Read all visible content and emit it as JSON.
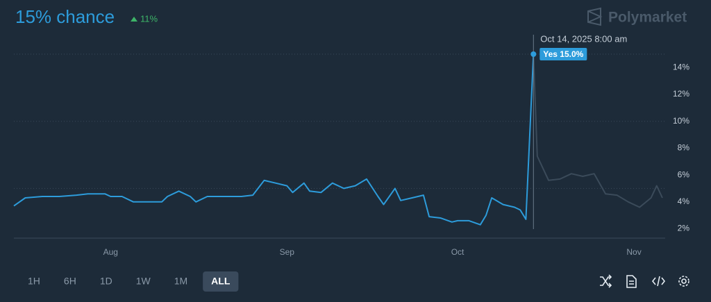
{
  "chart_data": {
    "type": "line",
    "headline": "15% chance",
    "change": "11%",
    "brand": "Polymarket",
    "tooltip": {
      "date": "Oct 14, 2025 8:00 am",
      "label": "Yes 15.0%"
    },
    "hover_x": "2025-10-14T08:00",
    "series": [
      {
        "name": "Yes",
        "color": "#2d9cdb",
        "x": [
          "2025-07-15",
          "2025-07-17",
          "2025-07-20",
          "2025-07-23",
          "2025-07-26",
          "2025-07-28",
          "2025-07-31",
          "2025-08-01",
          "2025-08-03",
          "2025-08-05",
          "2025-08-08",
          "2025-08-10",
          "2025-08-11",
          "2025-08-13",
          "2025-08-15",
          "2025-08-16",
          "2025-08-18",
          "2025-08-20",
          "2025-08-22",
          "2025-08-24",
          "2025-08-26",
          "2025-08-28",
          "2025-08-30",
          "2025-09-01",
          "2025-09-02",
          "2025-09-04",
          "2025-09-05",
          "2025-09-07",
          "2025-09-09",
          "2025-09-11",
          "2025-09-13",
          "2025-09-15",
          "2025-09-17",
          "2025-09-18",
          "2025-09-20",
          "2025-09-21",
          "2025-09-23",
          "2025-09-25",
          "2025-09-26",
          "2025-09-28",
          "2025-09-30",
          "2025-10-01",
          "2025-10-03",
          "2025-10-05",
          "2025-10-06",
          "2025-10-07",
          "2025-10-09",
          "2025-10-11",
          "2025-10-12",
          "2025-10-13",
          "2025-10-14T08:00",
          "2025-10-15",
          "2025-10-17",
          "2025-10-19",
          "2025-10-21",
          "2025-10-23",
          "2025-10-25",
          "2025-10-27",
          "2025-10-29",
          "2025-10-31",
          "2025-11-02",
          "2025-11-04",
          "2025-11-05",
          "2025-11-06"
        ],
        "values": [
          3.7,
          4.3,
          4.4,
          4.4,
          4.5,
          4.6,
          4.6,
          4.4,
          4.4,
          4.0,
          4.0,
          4.0,
          4.4,
          4.8,
          4.4,
          4.0,
          4.4,
          4.4,
          4.4,
          4.4,
          4.5,
          5.6,
          5.4,
          5.2,
          4.7,
          5.4,
          4.8,
          4.7,
          5.4,
          5.0,
          5.2,
          5.7,
          4.4,
          3.8,
          5.0,
          4.1,
          4.3,
          4.5,
          2.9,
          2.8,
          2.5,
          2.6,
          2.6,
          2.3,
          3.0,
          4.3,
          3.8,
          3.6,
          3.4,
          2.7,
          15.0,
          7.4,
          5.6,
          5.7,
          6.1,
          5.9,
          6.1,
          4.6,
          4.5,
          4.0,
          3.6,
          4.3,
          5.2,
          4.3
        ]
      }
    ],
    "after_color": "#3b4b5a",
    "xlim": [
      "2025-07-15",
      "2025-11-06"
    ],
    "xticks": [
      {
        "value": "2025-08-01",
        "label": "Aug"
      },
      {
        "value": "2025-09-01",
        "label": "Sep"
      },
      {
        "value": "2025-10-01",
        "label": "Oct"
      },
      {
        "value": "2025-11-01",
        "label": "Nov"
      }
    ],
    "ylim": [
      1.3,
      16.5
    ],
    "yticks": [
      {
        "value": 2,
        "label": "2%"
      },
      {
        "value": 4,
        "label": "4%"
      },
      {
        "value": 6,
        "label": "6%"
      },
      {
        "value": 8,
        "label": "8%"
      },
      {
        "value": 10,
        "label": "10%"
      },
      {
        "value": 12,
        "label": "12%"
      },
      {
        "value": 14,
        "label": "14%"
      }
    ],
    "grid_lines": [
      5,
      10,
      15
    ],
    "ranges": [
      "1H",
      "6H",
      "1D",
      "1W",
      "1M",
      "ALL"
    ],
    "active_range": 5
  }
}
